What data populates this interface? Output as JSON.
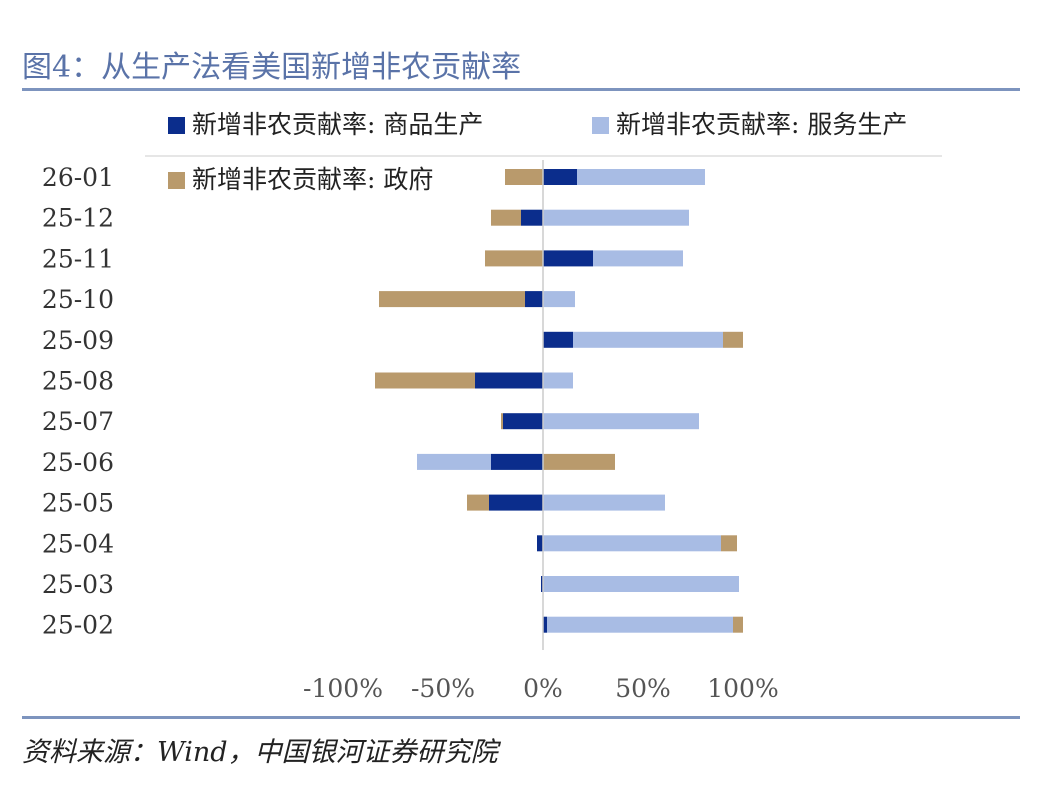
{
  "title": "图4：从生产法看美国新增非农贡献率",
  "source": "资料来源：Wind，中国银河证券研究院",
  "colors": {
    "goods": "#0b2d8c",
    "services": "#a8bce4",
    "gov": "#b99a6c"
  },
  "chart_data": {
    "type": "bar",
    "orientation": "horizontal",
    "stacked": true,
    "categories": [
      "26-01",
      "25-12",
      "25-11",
      "25-10",
      "25-09",
      "25-08",
      "25-07",
      "25-06",
      "25-05",
      "25-04",
      "25-03",
      "25-02"
    ],
    "series": [
      {
        "name": "新增非农贡献率: 商品生产",
        "values": [
          17,
          -11,
          25,
          -9,
          15,
          -34,
          -20,
          -26,
          -27,
          -3,
          -1,
          2
        ]
      },
      {
        "name": "新增非农贡献率: 服务生产",
        "values": [
          64,
          73,
          45,
          16,
          75,
          15,
          78,
          -37,
          61,
          89,
          98,
          93
        ]
      },
      {
        "name": "新增非农贡献率: 政府",
        "values": [
          -19,
          -15,
          -29,
          -73,
          10,
          -50,
          -1,
          36,
          -11,
          8,
          0,
          5
        ]
      }
    ],
    "xticks": [
      "-100%",
      "-50%",
      "0%",
      "50%",
      "100%"
    ],
    "xlim": [
      -100,
      100
    ],
    "unit": "%",
    "legend_position": "top"
  }
}
